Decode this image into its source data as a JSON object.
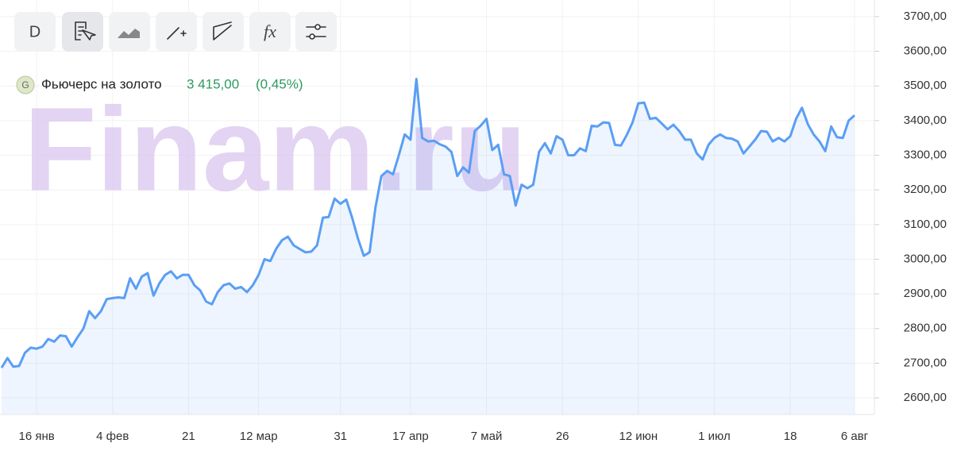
{
  "toolbar": {
    "interval": "D"
  },
  "chart_data": {
    "type": "line",
    "watermark": "Finam.ru",
    "icon": "G",
    "legend_value": "3 415,00",
    "legend_change": "(0,45%)",
    "categories": [
      null,
      null,
      null,
      null,
      null,
      null,
      "16 янв",
      null,
      null,
      null,
      null,
      null,
      null,
      null,
      null,
      null,
      null,
      null,
      null,
      "4 фев",
      null,
      null,
      null,
      null,
      null,
      null,
      null,
      null,
      null,
      null,
      null,
      null,
      "21",
      null,
      null,
      null,
      null,
      null,
      null,
      null,
      null,
      null,
      null,
      null,
      "12 мар",
      null,
      null,
      null,
      null,
      null,
      null,
      null,
      null,
      null,
      null,
      null,
      null,
      null,
      "31",
      null,
      null,
      null,
      null,
      null,
      null,
      null,
      null,
      null,
      null,
      null,
      "17 апр",
      null,
      null,
      null,
      null,
      null,
      null,
      null,
      null,
      null,
      null,
      null,
      null,
      "7 май",
      null,
      null,
      null,
      null,
      null,
      null,
      null,
      null,
      null,
      null,
      null,
      null,
      "26",
      null,
      null,
      null,
      null,
      null,
      null,
      null,
      null,
      null,
      null,
      null,
      null,
      "12 июн",
      null,
      null,
      null,
      null,
      null,
      null,
      null,
      null,
      null,
      null,
      null,
      null,
      "1 июл",
      null,
      null,
      null,
      null,
      null,
      null,
      null,
      null,
      null,
      null,
      null,
      null,
      "18",
      null,
      null,
      null,
      null,
      null,
      null,
      null,
      null,
      null,
      null,
      "6 авг"
    ],
    "series": [
      {
        "name": "Фьючерс на золото",
        "color": "#5a9ef5",
        "values": [
          2687,
          2715,
          2690,
          2692,
          2730,
          2745,
          2742,
          2748,
          2770,
          2762,
          2780,
          2778,
          2748,
          2775,
          2800,
          2850,
          2830,
          2850,
          2885,
          2888,
          2890,
          2888,
          2945,
          2915,
          2950,
          2960,
          2895,
          2930,
          2955,
          2965,
          2945,
          2955,
          2955,
          2925,
          2910,
          2878,
          2870,
          2905,
          2925,
          2930,
          2915,
          2920,
          2905,
          2925,
          2955,
          3000,
          2995,
          3030,
          3055,
          3065,
          3040,
          3030,
          3020,
          3022,
          3040,
          3120,
          3122,
          3175,
          3160,
          3172,
          3120,
          3060,
          3010,
          3020,
          3150,
          3240,
          3255,
          3245,
          3300,
          3360,
          3345,
          3520,
          3350,
          3340,
          3342,
          3332,
          3325,
          3310,
          3240,
          3265,
          3250,
          3370,
          3385,
          3405,
          3315,
          3330,
          3245,
          3240,
          3155,
          3215,
          3205,
          3215,
          3310,
          3335,
          3305,
          3355,
          3345,
          3300,
          3300,
          3320,
          3312,
          3385,
          3383,
          3395,
          3393,
          3330,
          3328,
          3358,
          3395,
          3450,
          3452,
          3405,
          3408,
          3392,
          3375,
          3388,
          3370,
          3345,
          3345,
          3305,
          3288,
          3330,
          3350,
          3360,
          3350,
          3348,
          3340,
          3305,
          3325,
          3345,
          3370,
          3368,
          3340,
          3350,
          3340,
          3355,
          3405,
          3437,
          3390,
          3360,
          3340,
          3312,
          3383,
          3352,
          3350,
          3400,
          3415
        ]
      }
    ],
    "ylim": [
      2552,
      3748
    ],
    "yticks": [
      {
        "value": 2600,
        "label": "2600,00"
      },
      {
        "value": 2700,
        "label": "2700,00"
      },
      {
        "value": 2800,
        "label": "2800,00"
      },
      {
        "value": 2900,
        "label": "2900,00"
      },
      {
        "value": 3000,
        "label": "3000,00"
      },
      {
        "value": 3100,
        "label": "3100,00"
      },
      {
        "value": 3200,
        "label": "3200,00"
      },
      {
        "value": 3300,
        "label": "3300,00"
      },
      {
        "value": 3400,
        "label": "3400,00"
      },
      {
        "value": 3500,
        "label": "3500,00"
      },
      {
        "value": 3600,
        "label": "3600,00"
      },
      {
        "value": 3700,
        "label": "3700,00"
      }
    ],
    "grid": true
  }
}
